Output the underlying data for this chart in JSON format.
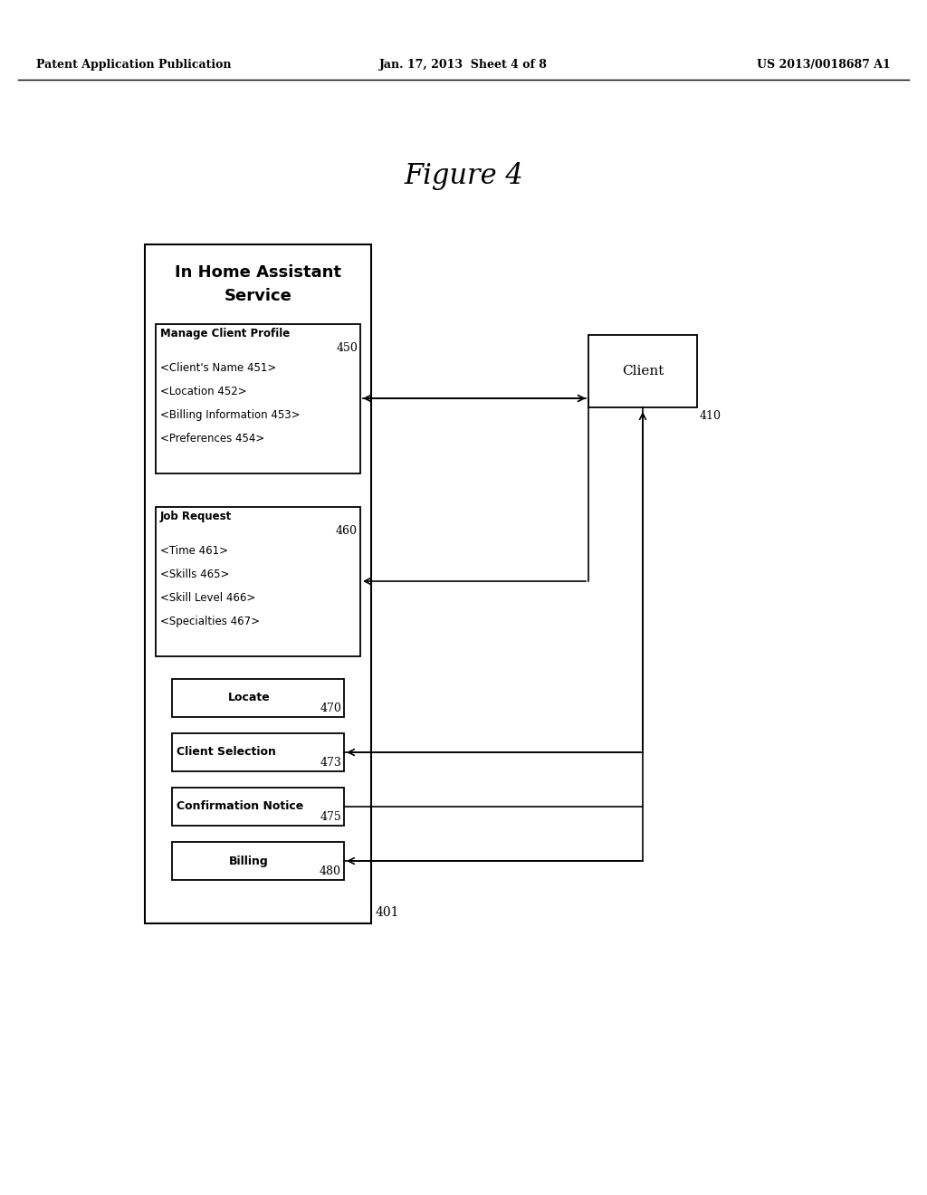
{
  "bg_color": "#ffffff",
  "header_left": "Patent Application Publication",
  "header_mid": "Jan. 17, 2013  Sheet 4 of 8",
  "header_right": "US 2013/0018687 A1",
  "figure_title": "Figure 4",
  "title_line1": "In Home Assistant",
  "title_line2": "Service",
  "main_box_label": "401",
  "mcp_title": "Manage Client Profile",
  "mcp_label": "450",
  "mcp_lines": [
    "<Client's Name 451>",
    "<Location 452>",
    "<Billing Information 453>",
    "<Preferences 454>"
  ],
  "jr_title": "Job Request",
  "jr_label": "460",
  "jr_lines": [
    "<Time 461>",
    "<Skills 465>",
    "<Skill Level 466>",
    "<Specialties 467>"
  ],
  "locate_label": "Locate",
  "locate_num": "470",
  "cs_label": "Client Selection",
  "cs_num": "473",
  "cn_label": "Confirmation Notice",
  "cn_num": "475",
  "billing_label": "Billing",
  "billing_num": "480",
  "client_label": "Client",
  "client_num": "410"
}
